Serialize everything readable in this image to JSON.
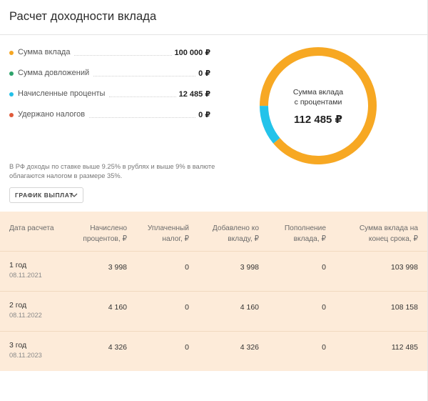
{
  "title": "Расчет доходности вклада",
  "legend": [
    {
      "label": "Сумма вклада",
      "value": "100 000 ₽",
      "color": "#f5a623"
    },
    {
      "label": "Сумма довложений",
      "value": "0 ₽",
      "color": "#2ea36b"
    },
    {
      "label": "Начисленные проценты",
      "value": "12 485 ₽",
      "color": "#23c0e8"
    },
    {
      "label": "Удержано налогов",
      "value": "0 ₽",
      "color": "#e05a3a"
    }
  ],
  "note": "В РФ доходы по ставке выше 9.25% в рублях и выше 9% в валюте облагаются налогом в размере 35%.",
  "donut": {
    "caption_line1": "Сумма вклада",
    "caption_line2": "с процентами",
    "total": "112 485 ₽",
    "segments": [
      {
        "name": "deposit",
        "value": 100000,
        "color": "#f7a823"
      },
      {
        "name": "interest",
        "value": 12485,
        "color": "#23c3ea"
      }
    ]
  },
  "schedule_button": {
    "label": "ГРАФИК ВЫПЛАТ"
  },
  "table": {
    "headers": [
      [
        "Дата расчета"
      ],
      [
        "Начислено",
        "процентов, ₽"
      ],
      [
        "Уплаченный",
        "налог, ₽"
      ],
      [
        "Добавлено ко",
        "вкладу, ₽"
      ],
      [
        "Пополнение",
        "вклада, ₽"
      ],
      [
        "Сумма вклада на",
        "конец срока, ₽"
      ]
    ],
    "rows": [
      {
        "period": "1 год",
        "date": "08.11.2021",
        "interest": "3 998",
        "tax": "0",
        "added": "3 998",
        "topup": "0",
        "total": "103 998"
      },
      {
        "period": "2 год",
        "date": "08.11.2022",
        "interest": "4 160",
        "tax": "0",
        "added": "4 160",
        "topup": "0",
        "total": "108 158"
      },
      {
        "period": "3 год",
        "date": "08.11.2023",
        "interest": "4 326",
        "tax": "0",
        "added": "4 326",
        "topup": "0",
        "total": "112 485"
      }
    ]
  }
}
